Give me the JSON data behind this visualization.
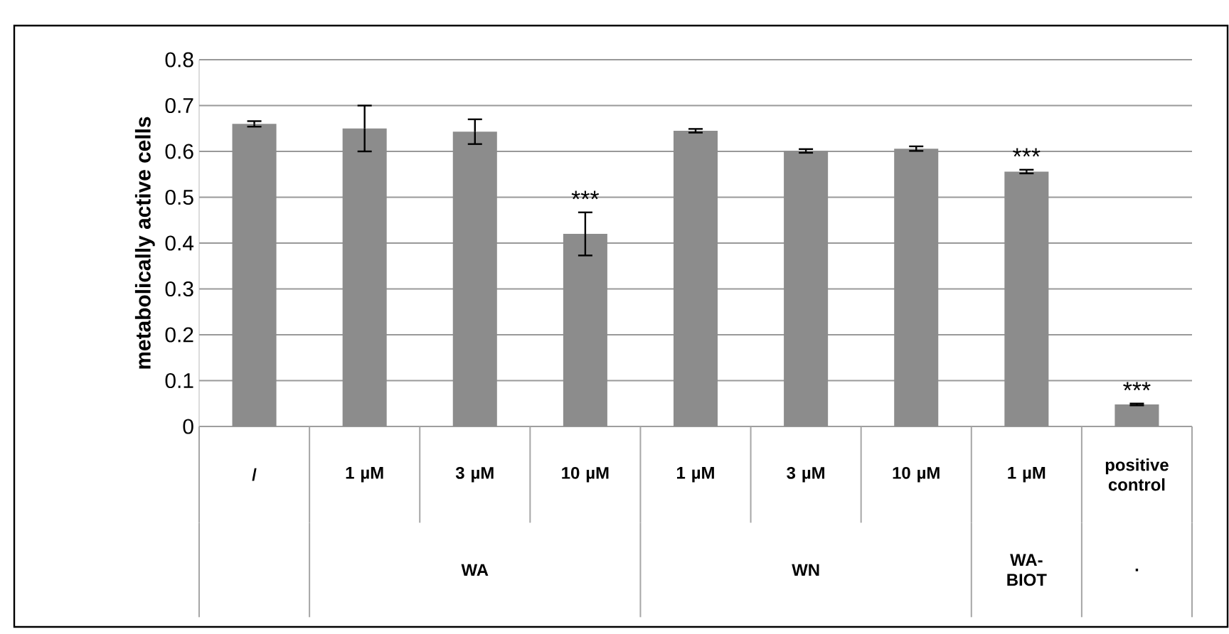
{
  "chart_data": {
    "type": "bar",
    "ylabel": "metabolically active cells",
    "categories": [
      "/",
      "1 µM",
      "3 µM",
      "10 µM",
      "1 µM",
      "3 µM",
      "10 µM",
      "1 µM",
      "positive control"
    ],
    "values": [
      0.66,
      0.65,
      0.643,
      0.42,
      0.645,
      0.601,
      0.606,
      0.556,
      0.048
    ],
    "errors": [
      0.006,
      0.05,
      0.027,
      0.047,
      0.004,
      0.004,
      0.005,
      0.004,
      0.002
    ],
    "color": "#8c8c8c",
    "ylim": [
      0,
      0.8
    ],
    "yticks": [
      0,
      0.1,
      0.2,
      0.3,
      0.4,
      0.5,
      0.6,
      0.7,
      0.8
    ],
    "grid": "y",
    "annotations": [
      "***",
      "***",
      "***",
      "WA",
      "WN",
      "WA-BIOT",
      "."
    ]
  }
}
